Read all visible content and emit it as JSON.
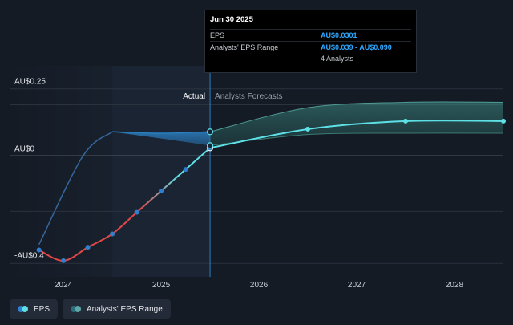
{
  "chart_data": {
    "type": "line",
    "y_ticks": [
      {
        "value": 0.25,
        "label": "AU$0.25"
      },
      {
        "value": 0,
        "label": "AU$0"
      },
      {
        "value": -0.4,
        "label": "-AU$0.4"
      }
    ],
    "ylim": [
      -0.45,
      0.3
    ],
    "x_ticks": [
      {
        "value": 2024,
        "label": "2024"
      },
      {
        "value": 2025,
        "label": "2025"
      },
      {
        "value": 2026,
        "label": "2026"
      },
      {
        "value": 2027,
        "label": "2027"
      },
      {
        "value": 2028,
        "label": "2028"
      }
    ],
    "xlim": [
      2023.45,
      2028.5
    ],
    "region_labels": {
      "actual": "Actual",
      "forecast": "Analysts Forecasts"
    },
    "actual_end": 2025.5,
    "series": [
      {
        "name": "EPS",
        "color_low": "#e04848",
        "color_high": "#5de0e6",
        "points": [
          {
            "x": 2023.75,
            "y": -0.35
          },
          {
            "x": 2024.0,
            "y": -0.39
          },
          {
            "x": 2024.25,
            "y": -0.34
          },
          {
            "x": 2024.5,
            "y": -0.29
          },
          {
            "x": 2024.75,
            "y": -0.21
          },
          {
            "x": 2025.0,
            "y": -0.13
          },
          {
            "x": 2025.25,
            "y": -0.05
          },
          {
            "x": 2025.5,
            "y": 0.03
          }
        ],
        "forecast": [
          {
            "x": 2025.5,
            "y": 0.03
          },
          {
            "x": 2026.5,
            "y": 0.1
          },
          {
            "x": 2027.5,
            "y": 0.13
          },
          {
            "x": 2028.5,
            "y": 0.13
          }
        ]
      },
      {
        "name": "Analysts' EPS Range",
        "color": "#2a7ec0",
        "upper": [
          {
            "x": 2024.5,
            "y": 0.09
          },
          {
            "x": 2025.0,
            "y": 0.085
          },
          {
            "x": 2025.5,
            "y": 0.09
          }
        ],
        "lower": [
          {
            "x": 2024.5,
            "y": 0.09
          },
          {
            "x": 2025.0,
            "y": 0.065
          },
          {
            "x": 2025.5,
            "y": 0.039
          }
        ],
        "forecast_upper": [
          {
            "x": 2025.5,
            "y": 0.09
          },
          {
            "x": 2026.5,
            "y": 0.18
          },
          {
            "x": 2027.5,
            "y": 0.2
          },
          {
            "x": 2028.5,
            "y": 0.2
          }
        ],
        "forecast_lower": [
          {
            "x": 2025.5,
            "y": 0.039
          },
          {
            "x": 2026.5,
            "y": 0.08
          },
          {
            "x": 2027.5,
            "y": 0.085
          },
          {
            "x": 2028.5,
            "y": 0.085
          }
        ]
      }
    ],
    "grid": true,
    "legend_position": "bottom-left"
  },
  "tooltip": {
    "date": "Jun 30 2025",
    "rows": [
      {
        "key": "EPS",
        "value": "AU$0.0301"
      },
      {
        "key": "Analysts' EPS Range",
        "value": "AU$0.039 - AU$0.090"
      },
      {
        "key": "",
        "value": "4 Analysts"
      }
    ]
  },
  "legend": [
    {
      "label": "EPS",
      "dot1": "#5de0e6",
      "dot2": "#2e7fd0"
    },
    {
      "label": "Analysts' EPS Range",
      "dot1": "#5da7a4",
      "dot2": "#2a6e7e"
    }
  ],
  "colors": {
    "background": "#151b25",
    "actual_shade": "#1a2433",
    "past_shade": "#10151c",
    "divider": "#2a7ec0"
  }
}
